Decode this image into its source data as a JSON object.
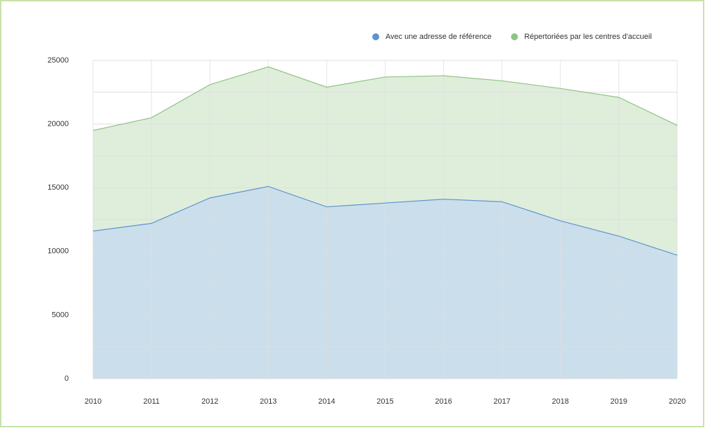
{
  "chart_data": {
    "type": "area",
    "categories": [
      "2010",
      "2011",
      "2012",
      "2013",
      "2014",
      "2015",
      "2016",
      "2017",
      "2018",
      "2019",
      "2020"
    ],
    "series": [
      {
        "name": "Répertoriées par les centres d'accueil",
        "color": "#8fc383",
        "fill": "#deeedb",
        "values": [
          19500,
          20500,
          23100,
          24500,
          22900,
          23700,
          23800,
          23400,
          22800,
          22100,
          19900
        ]
      },
      {
        "name": "Avec une adresse de référence",
        "color": "#5f93cf",
        "fill": "#c4d8f0",
        "values": [
          11600,
          12200,
          14200,
          15100,
          13500,
          13800,
          14100,
          13900,
          12400,
          11200,
          9700
        ]
      }
    ],
    "ylim": [
      0,
      25000
    ],
    "yticks": [
      0,
      5000,
      10000,
      15000,
      20000,
      25000
    ],
    "minor_yticks": [
      2500,
      7500,
      12500,
      17500,
      22500
    ],
    "grid": true,
    "legend": "top-right"
  }
}
